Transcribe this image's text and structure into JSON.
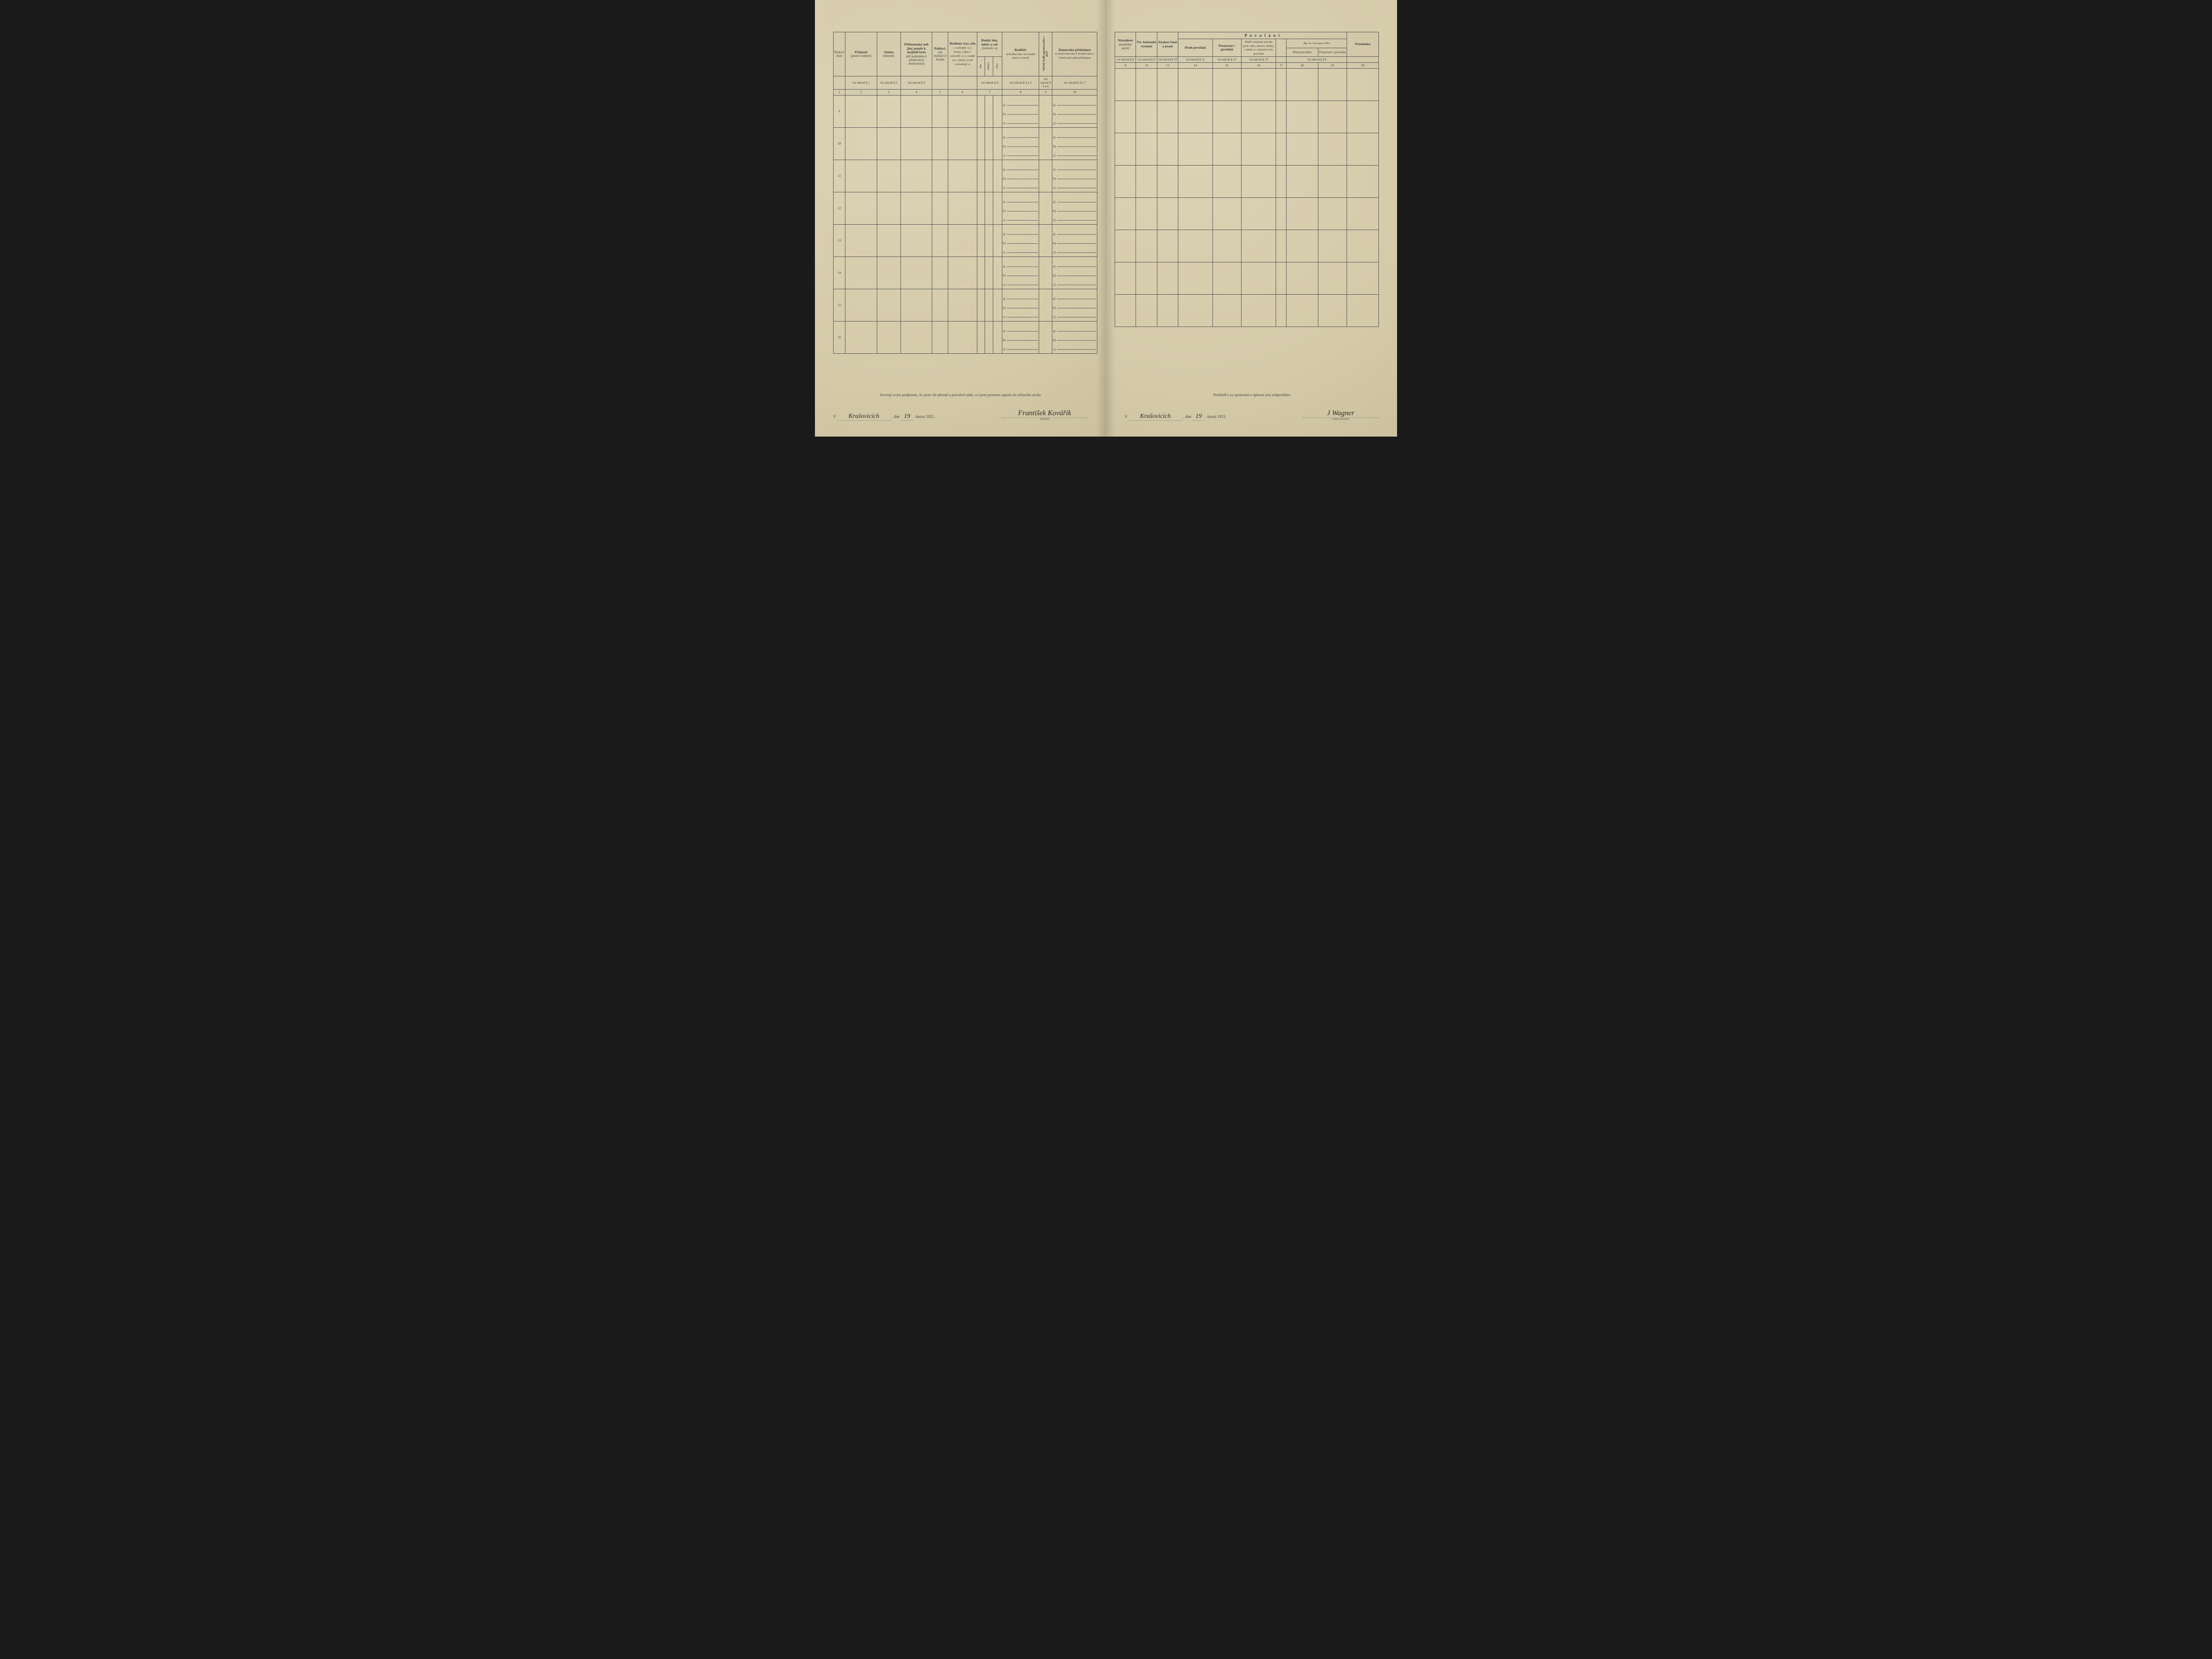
{
  "left": {
    "headers": {
      "c1": "Řadové číslo",
      "c2": {
        "t": "Příjmení",
        "s": "(jméno rodinné)"
      },
      "c3": {
        "t": "Jméno",
        "s": "(křestní)"
      },
      "c4": {
        "t": "Příbuzenský neb jiný poměr k majiteli bytu",
        "s": "(při podnájmu k přednostovi domácnosti)"
      },
      "c5": {
        "t": "Pohlaví,",
        "s": "zda mužské či ženské"
      },
      "c6": {
        "t": "Rodinný stav, zda",
        "s": "1. svobodný -á, 2. ženatý, vdaná 3. ovdovělý -á, 4. soudně roz- vedený -á neb rozloučený -á"
      },
      "c7": {
        "t": "Rodný den, měsíc a rok",
        "s": "(narozen -a)",
        "sub": [
          "dne",
          "měsíce",
          "roku"
        ]
      },
      "c8": {
        "t": "Rodiště:",
        "s": "a) Rodná obec b) Soudní okres c) Země"
      },
      "c9": "Od kdy bydlí zapsaná osoba v obci?",
      "c10": {
        "t": "Domovská příslušnost",
        "s": "(a Domovská obec b Soudní okres c Země) aneb státní příslušnost"
      }
    },
    "refs": [
      "",
      "viz návod § 1",
      "viz návod § 2",
      "viz návod § 3",
      "",
      "",
      "",
      "viz návod § 4",
      "viz návod § 4 a 5",
      "viz návod § 4 a 6",
      "viz návod § 4 a 7"
    ],
    "colnums": [
      "1",
      "2",
      "3",
      "4",
      "5",
      "6",
      "7",
      "8",
      "9",
      "10"
    ],
    "rows": [
      "9",
      "10",
      "11",
      "12",
      "13",
      "14",
      "15",
      "16"
    ],
    "abc": [
      "a)",
      "b)",
      "c)"
    ],
    "footer": {
      "stmt": "Stvrzuji svým podpisem, že jsem vše přesně a pravdivě udal, co jsem povinen zapsati do sčítacího archu",
      "place_prefix": "V",
      "place": "Krašovicích",
      "date_prefix": ", dne",
      "day": "19",
      "date_suffix": ". února 1921.",
      "sig": "František Kovářík",
      "siglabel": "(majitel)"
    }
  },
  "right": {
    "headers": {
      "c11": {
        "t": "Národnost",
        "s": "(mateřský jazyk)"
      },
      "c12": {
        "t": "Ná- boženské vyznání"
      },
      "c13": {
        "t": "Znalost čtení a psaní"
      },
      "grp": "P o v o l á n í",
      "c14": "Druh povolání",
      "c15": "Postavení v povolání",
      "c16": {
        "t": "Bližší označení závodu (pod- niku, ústavu, úřadu), v němž se vykonává toto povolání"
      },
      "c17": "",
      "sub1914": "dne 16. července 1914",
      "c18": "Druh povolání",
      "c19": "Postavení v povolání",
      "c20": "Poznámka"
    },
    "refs": [
      "viz návod § 8",
      "viz návod § 9",
      "viz návod § 10",
      "viz návod § 11",
      "viz návod § 12",
      "viz návod § 13",
      "",
      "viz návod § 14",
      "",
      ""
    ],
    "colnums": [
      "11",
      "12",
      "13",
      "14",
      "15",
      "16",
      "17",
      "18",
      "19",
      "20"
    ],
    "rows": 8,
    "footer": {
      "stmt": "Prohlédl a za správnost a úplnost jest zodpověden",
      "place_prefix": "V",
      "place": "Krašovicích",
      "date_prefix": ", dne",
      "day": "19",
      "date_suffix": ". února 1921.",
      "sig": "J Wagner",
      "siglabel": "sčítací komisař"
    }
  }
}
